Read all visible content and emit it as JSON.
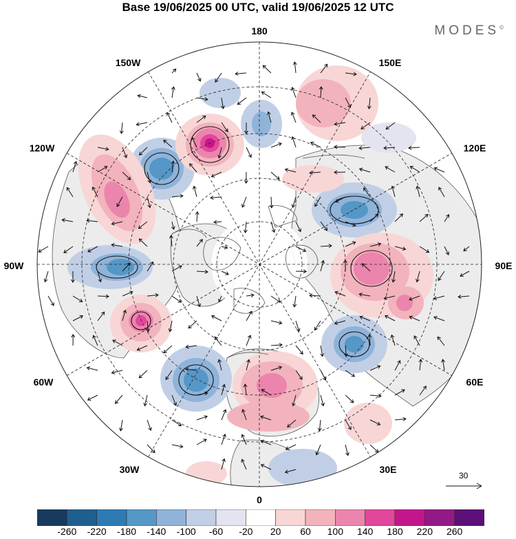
{
  "title": "Base 19/06/2025 00 UTC, valid 19/06/2025 12 UTC",
  "brand": "MODES",
  "brand_mark": "©",
  "longitude_labels": [
    {
      "id": "lon-180",
      "text": "180"
    },
    {
      "id": "lon-150e",
      "text": "150E"
    },
    {
      "id": "lon-120e",
      "text": "120E"
    },
    {
      "id": "lon-90e",
      "text": "90E"
    },
    {
      "id": "lon-60e",
      "text": "60E"
    },
    {
      "id": "lon-30e",
      "text": "30E"
    },
    {
      "id": "lon-0",
      "text": "0"
    },
    {
      "id": "lon-30w",
      "text": "30W"
    },
    {
      "id": "lon-60w",
      "text": "60W"
    },
    {
      "id": "lon-90w",
      "text": "90W"
    },
    {
      "id": "lon-120w",
      "text": "120W"
    },
    {
      "id": "lon-150w",
      "text": "150W"
    }
  ],
  "vector_scale_label": "30",
  "colorbar": {
    "ticks": [
      "-260",
      "-220",
      "-180",
      "-140",
      "-100",
      "-60",
      "-20",
      "20",
      "60",
      "100",
      "140",
      "180",
      "220",
      "260"
    ],
    "colors": [
      "#173a5e",
      "#1f5f8f",
      "#2e7bb4",
      "#5597c7",
      "#8fb3d9",
      "#c1cfe6",
      "#e4e4f0",
      "#ffffff",
      "#f8d6d6",
      "#f2b3bd",
      "#ec85ad",
      "#e2479b",
      "#c3168a",
      "#931a86",
      "#5c0f78"
    ]
  },
  "colors": {
    "land": "#ececec",
    "coast": "#555555",
    "grid": "#222222",
    "arrow": "#111111"
  }
}
